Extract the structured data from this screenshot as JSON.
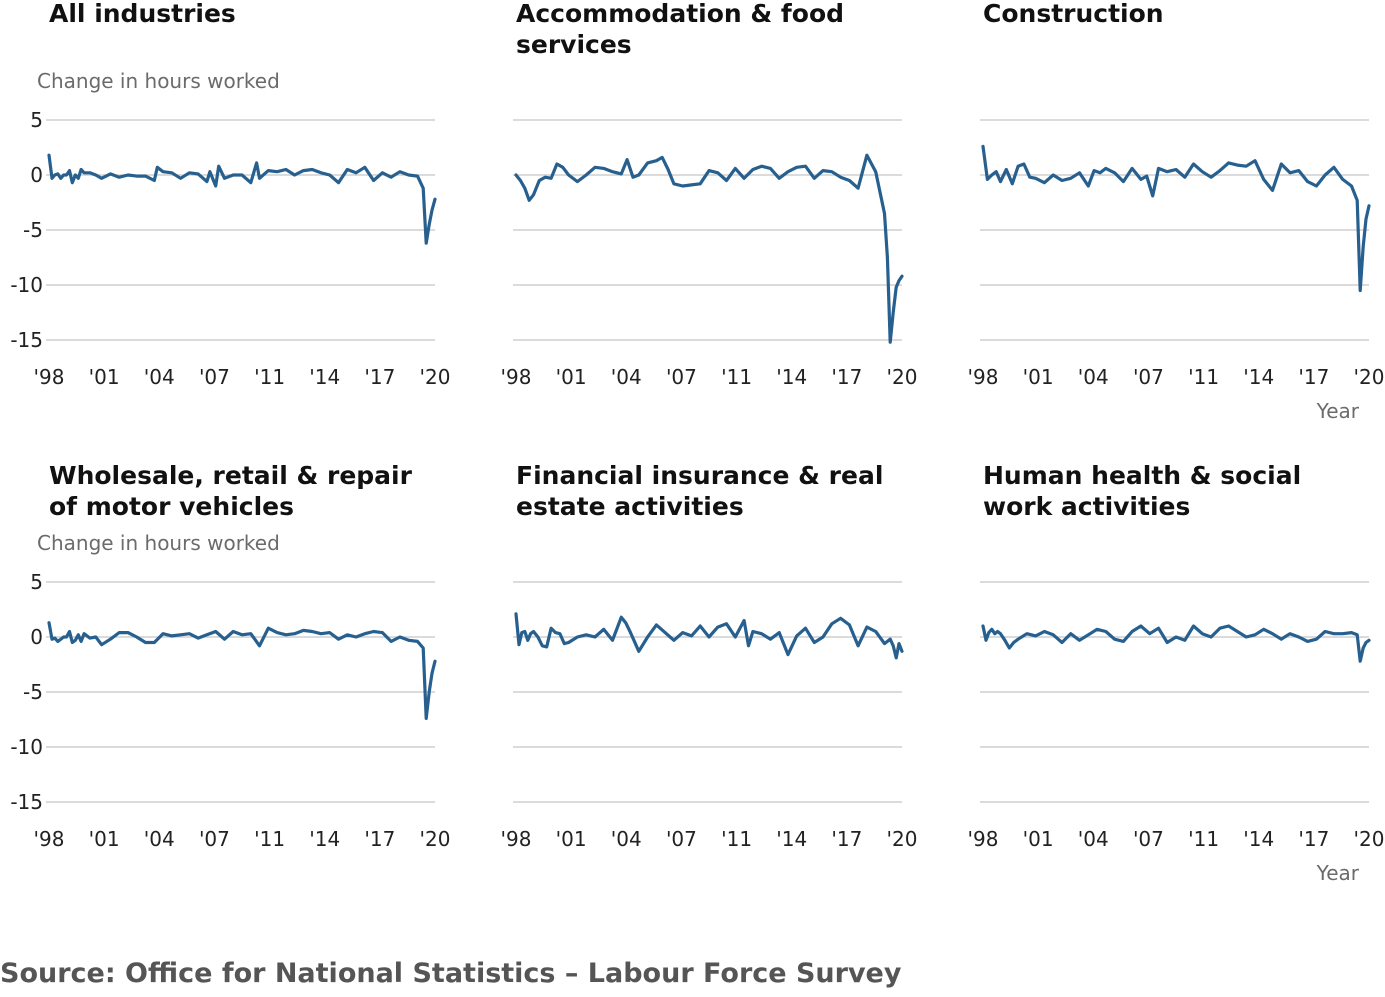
{
  "source_text": "Source: Office for National Statistics – Labour Force Survey",
  "chart_data": [
    {
      "type": "line",
      "title": [
        "All industries"
      ],
      "ylabel": "Change in hours worked",
      "xlabel": "",
      "ylim": [
        -15,
        5
      ],
      "yticks": [
        "5",
        "0",
        "-5",
        "-10",
        "-15"
      ],
      "xticks": [
        "'98",
        "'01",
        "'04",
        "'07",
        "'11",
        "'14",
        "'17",
        "'20"
      ],
      "xlim": [
        1998,
        2020
      ],
      "x": [
        1998.0,
        1998.17,
        1998.33,
        1998.5,
        1998.67,
        1998.83,
        1999.0,
        1999.17,
        1999.33,
        1999.5,
        1999.67,
        1999.83,
        2000.0,
        2000.33,
        2000.67,
        2001.0,
        2001.5,
        2002.0,
        2002.5,
        2003.0,
        2003.5,
        2004.0,
        2004.17,
        2004.5,
        2005.0,
        2005.5,
        2006.0,
        2006.5,
        2007.0,
        2007.17,
        2007.5,
        2007.67,
        2008.0,
        2008.5,
        2009.0,
        2009.5,
        2009.83,
        2010.0,
        2010.5,
        2011.0,
        2011.5,
        2012.0,
        2012.5,
        2013.0,
        2013.5,
        2014.0,
        2014.5,
        2015.0,
        2015.5,
        2016.0,
        2016.5,
        2017.0,
        2017.5,
        2018.0,
        2018.5,
        2019.0,
        2019.33,
        2019.5,
        2019.67,
        2019.83,
        2020.0
      ],
      "series": [
        {
          "values": [
            1.8,
            -0.3,
            0.0,
            0.1,
            -0.3,
            0.0,
            0.0,
            0.4,
            -0.7,
            0.0,
            -0.3,
            0.5,
            0.2,
            0.2,
            0.0,
            -0.3,
            0.1,
            -0.2,
            0.0,
            -0.1,
            -0.1,
            -0.5,
            0.7,
            0.3,
            0.2,
            -0.3,
            0.2,
            0.1,
            -0.6,
            0.3,
            -1.0,
            0.8,
            -0.3,
            0.0,
            0.0,
            -0.7,
            1.1,
            -0.3,
            0.4,
            0.3,
            0.5,
            0.0,
            0.4,
            0.5,
            0.2,
            0.0,
            -0.7,
            0.5,
            0.2,
            0.7,
            -0.5,
            0.2,
            -0.2,
            0.3,
            0.0,
            -0.1,
            -1.2,
            -6.2,
            -4.5,
            -3.2,
            -2.2
          ]
        }
      ]
    },
    {
      "type": "line",
      "title": [
        "Accommodation & food",
        "services"
      ],
      "ylabel": "",
      "xlabel": "",
      "ylim": [
        -15,
        5
      ],
      "yticks": [],
      "xticks": [
        "'98",
        "'01",
        "'04",
        "'07",
        "'11",
        "'14",
        "'17",
        "'20"
      ],
      "xlim": [
        1998,
        2020
      ],
      "x": [
        1998.0,
        1998.25,
        1998.5,
        1998.75,
        1999.0,
        1999.33,
        1999.67,
        2000.0,
        2000.33,
        2000.67,
        2001.0,
        2001.5,
        2002.0,
        2002.5,
        2003.0,
        2003.5,
        2004.0,
        2004.33,
        2004.67,
        2005.0,
        2005.5,
        2006.0,
        2006.33,
        2006.67,
        2007.0,
        2007.5,
        2008.0,
        2008.5,
        2009.0,
        2009.5,
        2010.0,
        2010.5,
        2011.0,
        2011.5,
        2012.0,
        2012.5,
        2013.0,
        2013.5,
        2014.0,
        2014.5,
        2015.0,
        2015.5,
        2016.0,
        2016.5,
        2017.0,
        2017.5,
        2018.0,
        2018.5,
        2019.0,
        2019.17,
        2019.33,
        2019.5,
        2019.67,
        2019.83,
        2020.0
      ],
      "series": [
        {
          "values": [
            0.0,
            -0.5,
            -1.2,
            -2.3,
            -1.8,
            -0.5,
            -0.2,
            -0.3,
            1.0,
            0.7,
            0.0,
            -0.6,
            0.0,
            0.7,
            0.6,
            0.3,
            0.1,
            1.4,
            -0.2,
            0.0,
            1.1,
            1.3,
            1.6,
            0.5,
            -0.8,
            -1.0,
            -0.9,
            -0.8,
            0.4,
            0.2,
            -0.5,
            0.6,
            -0.3,
            0.5,
            0.8,
            0.6,
            -0.3,
            0.3,
            0.7,
            0.8,
            -0.3,
            0.4,
            0.3,
            -0.2,
            -0.5,
            -1.2,
            1.8,
            0.3,
            -3.5,
            -7.5,
            -15.2,
            -12.5,
            -10.2,
            -9.6,
            -9.2
          ]
        }
      ]
    },
    {
      "type": "line",
      "title": [
        "Construction"
      ],
      "ylabel": "",
      "xlabel": "Year",
      "ylim": [
        -15,
        5
      ],
      "yticks": [],
      "xticks": [
        "'98",
        "'01",
        "'04",
        "'07",
        "'11",
        "'14",
        "'17",
        "'20"
      ],
      "xlim": [
        1998,
        2020
      ],
      "x": [
        1998.0,
        1998.25,
        1998.5,
        1998.75,
        1999.0,
        1999.33,
        1999.67,
        2000.0,
        2000.33,
        2000.67,
        2001.0,
        2001.5,
        2002.0,
        2002.5,
        2003.0,
        2003.5,
        2004.0,
        2004.33,
        2004.67,
        2005.0,
        2005.5,
        2006.0,
        2006.5,
        2007.0,
        2007.33,
        2007.67,
        2008.0,
        2008.5,
        2009.0,
        2009.5,
        2010.0,
        2010.5,
        2011.0,
        2011.5,
        2012.0,
        2012.5,
        2013.0,
        2013.5,
        2014.0,
        2014.5,
        2015.0,
        2015.5,
        2016.0,
        2016.5,
        2017.0,
        2017.5,
        2018.0,
        2018.5,
        2019.0,
        2019.33,
        2019.5,
        2019.67,
        2019.83,
        2020.0
      ],
      "series": [
        {
          "values": [
            2.6,
            -0.4,
            0.0,
            0.3,
            -0.6,
            0.5,
            -0.8,
            0.8,
            1.0,
            -0.2,
            -0.3,
            -0.7,
            0.0,
            -0.5,
            -0.3,
            0.2,
            -1.0,
            0.4,
            0.2,
            0.6,
            0.2,
            -0.6,
            0.6,
            -0.4,
            -0.1,
            -1.9,
            0.6,
            0.3,
            0.5,
            -0.2,
            1.0,
            0.3,
            -0.2,
            0.4,
            1.1,
            0.9,
            0.8,
            1.3,
            -0.4,
            -1.4,
            1.0,
            0.2,
            0.4,
            -0.6,
            -1.0,
            0.0,
            0.7,
            -0.4,
            -1.0,
            -2.3,
            -10.5,
            -6.5,
            -4.0,
            -2.8
          ]
        }
      ]
    },
    {
      "type": "line",
      "title": [
        "Wholesale, retail & repair",
        "of motor vehicles"
      ],
      "ylabel": "Change in hours worked",
      "xlabel": "",
      "ylim": [
        -15,
        5
      ],
      "yticks": [
        "5",
        "0",
        "-5",
        "-10",
        "-15"
      ],
      "xticks": [
        "'98",
        "'01",
        "'04",
        "'07",
        "'11",
        "'14",
        "'17",
        "'20"
      ],
      "xlim": [
        1998,
        2020
      ],
      "x": [
        1998.0,
        1998.17,
        1998.33,
        1998.5,
        1998.67,
        1998.83,
        1999.0,
        1999.17,
        1999.33,
        1999.5,
        1999.67,
        1999.83,
        2000.0,
        2000.33,
        2000.67,
        2001.0,
        2001.5,
        2002.0,
        2002.5,
        2003.0,
        2003.5,
        2004.0,
        2004.5,
        2005.0,
        2005.5,
        2006.0,
        2006.5,
        2007.0,
        2007.5,
        2008.0,
        2008.5,
        2009.0,
        2009.5,
        2010.0,
        2010.5,
        2011.0,
        2011.5,
        2012.0,
        2012.5,
        2013.0,
        2013.5,
        2014.0,
        2014.5,
        2015.0,
        2015.5,
        2016.0,
        2016.5,
        2017.0,
        2017.5,
        2018.0,
        2018.5,
        2019.0,
        2019.33,
        2019.5,
        2019.67,
        2019.83,
        2020.0
      ],
      "series": [
        {
          "values": [
            1.3,
            -0.2,
            -0.1,
            -0.4,
            -0.2,
            0.0,
            0.0,
            0.5,
            -0.5,
            -0.3,
            0.2,
            -0.4,
            0.3,
            -0.1,
            0.0,
            -0.7,
            -0.2,
            0.4,
            0.4,
            0.0,
            -0.5,
            -0.5,
            0.3,
            0.1,
            0.2,
            0.3,
            -0.1,
            0.2,
            0.5,
            -0.2,
            0.5,
            0.2,
            0.3,
            -0.8,
            0.8,
            0.4,
            0.2,
            0.3,
            0.6,
            0.5,
            0.3,
            0.4,
            -0.2,
            0.2,
            0.0,
            0.3,
            0.5,
            0.4,
            -0.4,
            0.0,
            -0.3,
            -0.4,
            -1.0,
            -7.4,
            -5.0,
            -3.3,
            -2.2
          ]
        }
      ]
    },
    {
      "type": "line",
      "title": [
        "Financial insurance & real",
        "estate activities"
      ],
      "ylabel": "",
      "xlabel": "",
      "ylim": [
        -15,
        5
      ],
      "yticks": [],
      "xticks": [
        "'98",
        "'01",
        "'04",
        "'07",
        "'11",
        "'14",
        "'17",
        "'20"
      ],
      "xlim": [
        1998,
        2020
      ],
      "x": [
        1998.0,
        1998.17,
        1998.33,
        1998.5,
        1998.67,
        1998.83,
        1999.0,
        1999.25,
        1999.5,
        1999.75,
        2000.0,
        2000.25,
        2000.5,
        2000.75,
        2001.0,
        2001.5,
        2002.0,
        2002.5,
        2003.0,
        2003.5,
        2004.0,
        2004.25,
        2004.5,
        2005.0,
        2005.5,
        2006.0,
        2006.5,
        2007.0,
        2007.5,
        2008.0,
        2008.5,
        2009.0,
        2009.5,
        2010.0,
        2010.5,
        2011.0,
        2011.25,
        2011.5,
        2012.0,
        2012.5,
        2013.0,
        2013.5,
        2014.0,
        2014.5,
        2015.0,
        2015.5,
        2016.0,
        2016.5,
        2017.0,
        2017.5,
        2018.0,
        2018.5,
        2019.0,
        2019.33,
        2019.5,
        2019.67,
        2019.83,
        2020.0
      ],
      "series": [
        {
          "values": [
            2.1,
            -0.7,
            0.4,
            0.5,
            -0.3,
            0.3,
            0.5,
            0.0,
            -0.8,
            -0.9,
            0.8,
            0.4,
            0.3,
            -0.6,
            -0.5,
            0.0,
            0.2,
            0.0,
            0.7,
            -0.3,
            1.8,
            1.3,
            0.5,
            -1.3,
            0.0,
            1.1,
            0.4,
            -0.3,
            0.4,
            0.1,
            1.0,
            0.0,
            0.9,
            1.2,
            0.0,
            1.5,
            -0.8,
            0.5,
            0.3,
            -0.2,
            0.4,
            -1.6,
            0.1,
            0.8,
            -0.5,
            0.0,
            1.2,
            1.7,
            1.1,
            -0.8,
            0.9,
            0.5,
            -0.6,
            -0.2,
            -0.8,
            -1.9,
            -0.6,
            -1.3
          ]
        }
      ]
    },
    {
      "type": "line",
      "title": [
        "Human health & social",
        "work activities"
      ],
      "ylabel": "",
      "xlabel": "Year",
      "ylim": [
        -15,
        5
      ],
      "yticks": [],
      "xticks": [
        "'98",
        "'01",
        "'04",
        "'07",
        "'11",
        "'14",
        "'17",
        "'20"
      ],
      "xlim": [
        1998,
        2020
      ],
      "x": [
        1998.0,
        1998.17,
        1998.33,
        1998.5,
        1998.67,
        1998.83,
        1999.0,
        1999.25,
        1999.5,
        1999.75,
        2000.0,
        2000.5,
        2001.0,
        2001.5,
        2002.0,
        2002.5,
        2003.0,
        2003.5,
        2004.0,
        2004.5,
        2005.0,
        2005.5,
        2006.0,
        2006.5,
        2007.0,
        2007.5,
        2008.0,
        2008.5,
        2009.0,
        2009.5,
        2010.0,
        2010.5,
        2011.0,
        2011.5,
        2012.0,
        2012.5,
        2013.0,
        2013.5,
        2014.0,
        2014.5,
        2015.0,
        2015.5,
        2016.0,
        2016.5,
        2017.0,
        2017.5,
        2018.0,
        2018.5,
        2019.0,
        2019.33,
        2019.5,
        2019.67,
        2019.83,
        2020.0
      ],
      "series": [
        {
          "values": [
            1.0,
            -0.3,
            0.4,
            0.7,
            0.3,
            0.5,
            0.3,
            -0.3,
            -1.0,
            -0.5,
            -0.2,
            0.3,
            0.1,
            0.5,
            0.2,
            -0.5,
            0.3,
            -0.3,
            0.2,
            0.7,
            0.5,
            -0.2,
            -0.4,
            0.5,
            1.0,
            0.3,
            0.8,
            -0.5,
            0.0,
            -0.3,
            1.0,
            0.3,
            0.0,
            0.8,
            1.0,
            0.5,
            0.0,
            0.2,
            0.7,
            0.3,
            -0.2,
            0.3,
            0.0,
            -0.4,
            -0.2,
            0.5,
            0.3,
            0.3,
            0.4,
            0.2,
            -2.2,
            -1.0,
            -0.5,
            -0.3
          ]
        }
      ]
    }
  ]
}
